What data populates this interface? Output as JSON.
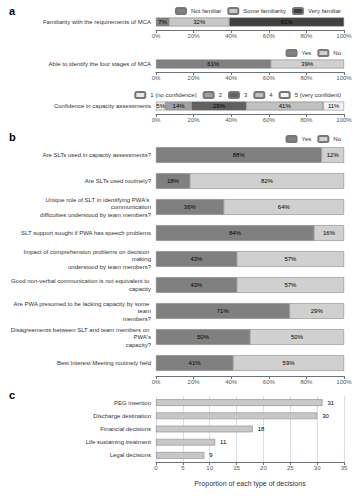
{
  "chart_data": [
    {
      "type": "bar",
      "title": "a",
      "orientation": "horizontal",
      "stacked": true,
      "data_labels": true,
      "legend": "upper right",
      "categories": [
        "Familiarity with the requirements of MCA"
      ],
      "series": [
        {
          "name": "Not familiar",
          "color": "#808080",
          "values": [
            7
          ],
          "value_labels": [
            "7%"
          ]
        },
        {
          "name": "Some familiarity",
          "color": "#c8c8c8",
          "values": [
            32
          ],
          "value_labels": [
            "32%"
          ]
        },
        {
          "name": "Very familiar",
          "color": "#404040",
          "values": [
            61
          ],
          "value_labels": [
            "61%"
          ]
        }
      ],
      "xlim": [
        0,
        100
      ],
      "xticks": [
        {
          "value": 0,
          "label": "0%"
        },
        {
          "value": 20,
          "label": "20%"
        },
        {
          "value": 40,
          "label": "40%"
        },
        {
          "value": 60,
          "label": "60%"
        },
        {
          "value": 80,
          "label": "80%"
        },
        {
          "value": 100,
          "label": "100%"
        }
      ]
    },
    {
      "type": "bar",
      "orientation": "horizontal",
      "stacked": true,
      "data_labels": true,
      "legend": "upper right",
      "categories": [
        "Able to identify the four stages of MCA"
      ],
      "series": [
        {
          "name": "Yes",
          "color": "#808080",
          "values": [
            61
          ],
          "value_labels": [
            "61%"
          ]
        },
        {
          "name": "No",
          "color": "#d0d0d0",
          "values": [
            39
          ],
          "value_labels": [
            "39%"
          ]
        }
      ],
      "xlim": [
        0,
        100
      ],
      "xticks": [
        {
          "value": 0,
          "label": "0%"
        },
        {
          "value": 20,
          "label": "20%"
        },
        {
          "value": 40,
          "label": "40%"
        },
        {
          "value": 60,
          "label": "60%"
        },
        {
          "value": 80,
          "label": "80%"
        },
        {
          "value": 100,
          "label": "100%"
        }
      ]
    },
    {
      "type": "bar",
      "orientation": "horizontal",
      "stacked": true,
      "data_labels": true,
      "legend": "upper right",
      "categories": [
        "Confidence in capacity assessments"
      ],
      "series": [
        {
          "name": "1 (no confidence)",
          "color": "#e8e8e8",
          "values": [
            5
          ],
          "value_labels": [
            "5%"
          ]
        },
        {
          "name": "2",
          "color": "#a0a0a0",
          "values": [
            14
          ],
          "value_labels": [
            "14%"
          ]
        },
        {
          "name": "3",
          "color": "#606060",
          "values": [
            29
          ],
          "value_labels": [
            "29%"
          ]
        },
        {
          "name": "4",
          "color": "#c0c0c0",
          "values": [
            41
          ],
          "value_labels": [
            "41%"
          ]
        },
        {
          "name": "5 (very confident)",
          "color": "#f4f4f4",
          "values": [
            11
          ],
          "value_labels": [
            "11%"
          ]
        }
      ],
      "xlim": [
        0,
        100
      ],
      "xticks": [
        {
          "value": 0,
          "label": "0%"
        },
        {
          "value": 20,
          "label": "20%"
        },
        {
          "value": 40,
          "label": "40%"
        },
        {
          "value": 60,
          "label": "60%"
        },
        {
          "value": 80,
          "label": "80%"
        },
        {
          "value": 100,
          "label": "100%"
        }
      ]
    },
    {
      "type": "bar",
      "title": "b",
      "orientation": "horizontal",
      "stacked": true,
      "data_labels": true,
      "legend": "upper right",
      "categories": [
        "Are SLTs used in capacity assessments?",
        "Are SLTs used routinely?",
        "Unique role of SLT in identifying PWA's communication\ndifficulties understood by team members?",
        "SLT support sought if PWA has speech problems",
        "Impact of comprehension problems on decision making\nunderstood by team members?",
        "Good non-verbal communication is not equivalent to capacity",
        "Are PWA presumed to be lacking capacity by some team\nmembers?",
        "Disagreements between SLT and team members on PWA's\ncapacity?",
        "Best Interest Meeting routinely held"
      ],
      "series": [
        {
          "name": "Yes",
          "color": "#808080",
          "values": [
            88,
            18,
            36,
            84,
            43,
            43,
            71,
            50,
            41
          ],
          "value_labels": [
            "88%",
            "18%",
            "36%",
            "84%",
            "43%",
            "43%",
            "71%",
            "50%",
            "41%"
          ]
        },
        {
          "name": "No",
          "color": "#d0d0d0",
          "values": [
            12,
            82,
            64,
            16,
            57,
            57,
            29,
            50,
            59
          ],
          "value_labels": [
            "12%",
            "82%",
            "64%",
            "16%",
            "57%",
            "57%",
            "29%",
            "50%",
            "59%"
          ]
        }
      ],
      "xlim": [
        0,
        100
      ],
      "xticks": [
        {
          "value": 0,
          "label": "0%"
        },
        {
          "value": 20,
          "label": "20%"
        },
        {
          "value": 40,
          "label": "40%"
        },
        {
          "value": 60,
          "label": "60%"
        },
        {
          "value": 80,
          "label": "80%"
        },
        {
          "value": 100,
          "label": "100%"
        }
      ]
    },
    {
      "type": "bar",
      "title": "c",
      "orientation": "horizontal",
      "data_labels": true,
      "grid": true,
      "categories": [
        "PEG insertion",
        "Discharge destination",
        "Financial decisions",
        "Life sustaining treatment",
        "Legal decisions"
      ],
      "values": [
        31,
        30,
        18,
        11,
        9
      ],
      "color": "#c8c8c8",
      "xlabel": "Proportion of each type of decisions",
      "xlim": [
        0,
        35
      ],
      "xticks": [
        0,
        5,
        10,
        15,
        20,
        25,
        30,
        35
      ]
    }
  ]
}
